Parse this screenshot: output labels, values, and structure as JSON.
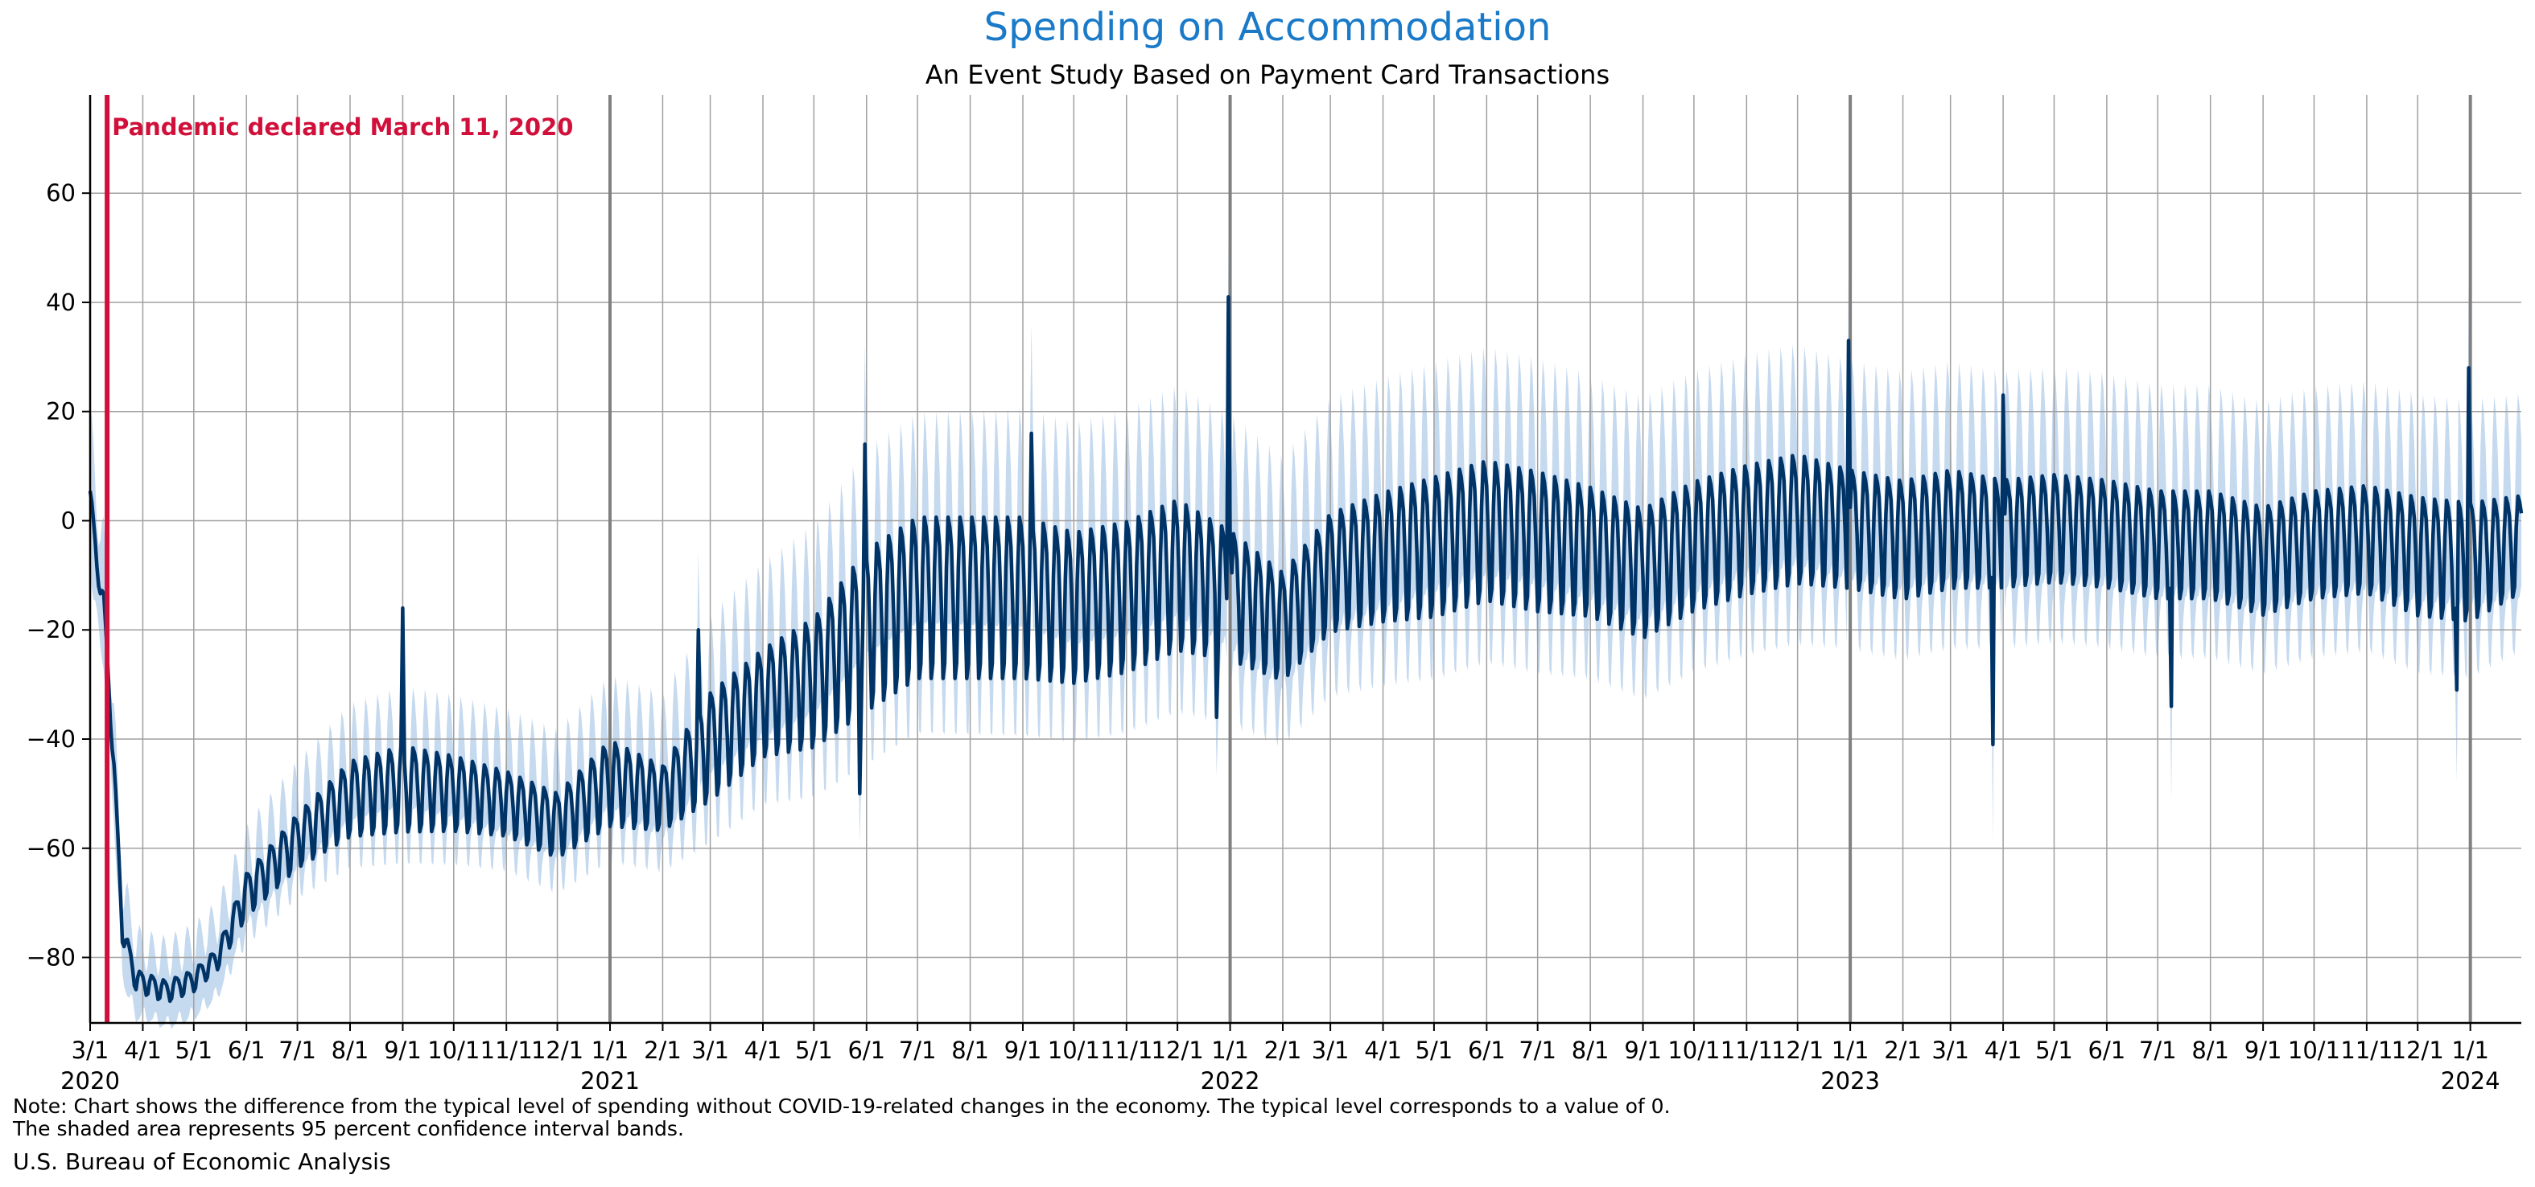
{
  "chart_data": {
    "type": "line",
    "title": "Spending on Accommodation",
    "subtitle": "An Event Study Based on Payment Card Transactions",
    "xlabel": "",
    "ylabel": "",
    "ylim": [
      -92,
      78
    ],
    "xlim": [
      "2020-03-01",
      "2024-01-31"
    ],
    "yticks": [
      -80,
      -60,
      -40,
      -20,
      0,
      20,
      40,
      60
    ],
    "ytick_labels": [
      "−80",
      "−60",
      "−40",
      "−20",
      "0",
      "20",
      "40",
      "60"
    ],
    "month_tick_label": [
      "3/1",
      "4/1",
      "5/1",
      "6/1",
      "7/1",
      "8/1",
      "9/1",
      "10/1",
      "11/1",
      "12/1",
      "1/1",
      "2/1"
    ],
    "year_labels": [
      "2020",
      "2021",
      "2022",
      "2023",
      "2024"
    ],
    "grid": true,
    "event": {
      "date": "2020-03-11",
      "label": "Pandemic declared March 11, 2020"
    },
    "series": [
      {
        "role": "estimate",
        "note": "daily values; trend points below, with a weekly oscillation of the stated amplitude",
        "points": [
          {
            "x": "2020-03-01",
            "y": 5,
            "amp": 2
          },
          {
            "x": "2020-03-05",
            "y": -8,
            "amp": 2
          },
          {
            "x": "2020-03-09",
            "y": -15,
            "amp": 2
          },
          {
            "x": "2020-03-15",
            "y": -45,
            "amp": 2
          },
          {
            "x": "2020-03-20",
            "y": -75,
            "amp": 2
          },
          {
            "x": "2020-03-28",
            "y": -84,
            "amp": 2
          },
          {
            "x": "2020-04-15",
            "y": -86,
            "amp": 2
          },
          {
            "x": "2020-05-01",
            "y": -84,
            "amp": 2
          },
          {
            "x": "2020-05-15",
            "y": -80,
            "amp": 2
          },
          {
            "x": "2020-06-01",
            "y": -68,
            "amp": 4
          },
          {
            "x": "2020-07-01",
            "y": -58,
            "amp": 5
          },
          {
            "x": "2020-08-01",
            "y": -50,
            "amp": 7
          },
          {
            "x": "2020-09-01",
            "y": -48,
            "amp": 8
          },
          {
            "x": "2020-10-01",
            "y": -49,
            "amp": 7
          },
          {
            "x": "2020-11-01",
            "y": -51,
            "amp": 6
          },
          {
            "x": "2020-12-01",
            "y": -55,
            "amp": 6
          },
          {
            "x": "2021-01-01",
            "y": -47,
            "amp": 8
          },
          {
            "x": "2021-02-01",
            "y": -50,
            "amp": 6
          },
          {
            "x": "2021-03-01",
            "y": -40,
            "amp": 10
          },
          {
            "x": "2021-04-01",
            "y": -32,
            "amp": 10
          },
          {
            "x": "2021-05-01",
            "y": -28,
            "amp": 12
          },
          {
            "x": "2021-06-01",
            "y": -18,
            "amp": 15
          },
          {
            "x": "2021-07-01",
            "y": -12,
            "amp": 15
          },
          {
            "x": "2021-08-01",
            "y": -12,
            "amp": 15
          },
          {
            "x": "2021-09-01",
            "y": -12,
            "amp": 15
          },
          {
            "x": "2021-10-01",
            "y": -14,
            "amp": 14
          },
          {
            "x": "2021-11-01",
            "y": -12,
            "amp": 14
          },
          {
            "x": "2021-12-01",
            "y": -8,
            "amp": 14
          },
          {
            "x": "2022-01-01",
            "y": -12,
            "amp": 12
          },
          {
            "x": "2022-02-01",
            "y": -18,
            "amp": 10
          },
          {
            "x": "2022-03-01",
            "y": -8,
            "amp": 11
          },
          {
            "x": "2022-04-01",
            "y": -5,
            "amp": 12
          },
          {
            "x": "2022-05-01",
            "y": -3,
            "amp": 13
          },
          {
            "x": "2022-06-01",
            "y": 0,
            "amp": 13
          },
          {
            "x": "2022-07-01",
            "y": -2,
            "amp": 13
          },
          {
            "x": "2022-08-01",
            "y": -4,
            "amp": 12
          },
          {
            "x": "2022-09-01",
            "y": -8,
            "amp": 12
          },
          {
            "x": "2022-10-01",
            "y": -3,
            "amp": 12
          },
          {
            "x": "2022-11-01",
            "y": 0,
            "amp": 12
          },
          {
            "x": "2022-12-01",
            "y": 2,
            "amp": 12
          },
          {
            "x": "2023-01-01",
            "y": 0,
            "amp": 11
          },
          {
            "x": "2023-02-01",
            "y": -2,
            "amp": 11
          },
          {
            "x": "2023-03-01",
            "y": 0,
            "amp": 11
          },
          {
            "x": "2023-04-01",
            "y": -1,
            "amp": 10
          },
          {
            "x": "2023-05-01",
            "y": 0,
            "amp": 10
          },
          {
            "x": "2023-06-01",
            "y": -1,
            "amp": 10
          },
          {
            "x": "2023-07-01",
            "y": -3,
            "amp": 10
          },
          {
            "x": "2023-08-01",
            "y": -3,
            "amp": 10
          },
          {
            "x": "2023-09-01",
            "y": -6,
            "amp": 10
          },
          {
            "x": "2023-10-01",
            "y": -3,
            "amp": 10
          },
          {
            "x": "2023-11-01",
            "y": -2,
            "amp": 10
          },
          {
            "x": "2023-12-01",
            "y": -5,
            "amp": 11
          },
          {
            "x": "2024-01-01",
            "y": -6,
            "amp": 11
          },
          {
            "x": "2024-01-31",
            "y": -3,
            "amp": 9
          }
        ],
        "spikes": [
          {
            "x": "2020-09-01",
            "y": -16
          },
          {
            "x": "2021-02-22",
            "y": -20
          },
          {
            "x": "2021-05-28",
            "y": -50
          },
          {
            "x": "2021-05-31",
            "y": 14
          },
          {
            "x": "2021-09-06",
            "y": 16
          },
          {
            "x": "2021-12-24",
            "y": -36
          },
          {
            "x": "2021-12-31",
            "y": 41
          },
          {
            "x": "2022-01-01",
            "y": -5
          },
          {
            "x": "2022-12-31",
            "y": 33
          },
          {
            "x": "2023-03-26",
            "y": -41
          },
          {
            "x": "2023-04-01",
            "y": 23
          },
          {
            "x": "2023-07-09",
            "y": -34
          },
          {
            "x": "2023-12-24",
            "y": -31
          },
          {
            "x": "2023-12-31",
            "y": 28
          }
        ]
      },
      {
        "role": "95 percent confidence interval band",
        "half_width": [
          {
            "x": "2020-03-01",
            "y": 12
          },
          {
            "x": "2020-04-01",
            "y": 6
          },
          {
            "x": "2020-08-01",
            "y": 8
          },
          {
            "x": "2021-01-01",
            "y": 9
          },
          {
            "x": "2021-06-01",
            "y": 14
          },
          {
            "x": "2022-01-01",
            "y": 16
          },
          {
            "x": "2023-01-01",
            "y": 15
          },
          {
            "x": "2024-01-31",
            "y": 14
          }
        ]
      }
    ],
    "colors": {
      "estimate": "#003366",
      "band": "#c5d9ef",
      "event": "#d0103a",
      "grid": "#a0a0a0",
      "year_line": "#808080"
    }
  },
  "note": {
    "line1": "Note: Chart shows the difference from the typical level of spending without COVID-19-related changes in the economy. The typical level corresponds to a value of 0.",
    "line2": "The shaded area represents 95 percent confidence interval bands."
  },
  "source": "U.S. Bureau of Economic Analysis"
}
